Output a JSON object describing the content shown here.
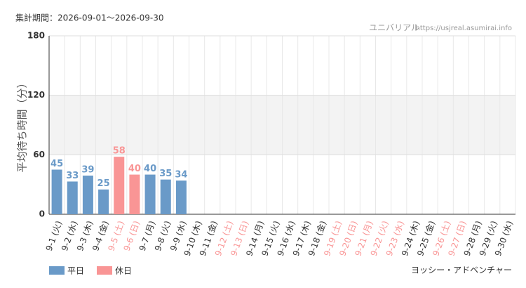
{
  "chart_data": {
    "type": "bar",
    "period": "集計期間：2026-09-01～2026-09-30",
    "site": "ユニバリアル",
    "url": "https://usjreal.asumirai.info",
    "ylabel": "平均待ち時間（分）",
    "attraction": "ヨッシー・アドベンチャー",
    "categories": [
      "9-1 (火)",
      "9-2 (水)",
      "9-3 (木)",
      "9-4 (金)",
      "9-5 (土)",
      "9-6 (日)",
      "9-7 (月)",
      "9-8 (火)",
      "9-9 (水)",
      "9-10 (木)",
      "9-11 (金)",
      "9-12 (土)",
      "9-13 (日)",
      "9-14 (月)",
      "9-15 (火)",
      "9-16 (水)",
      "9-17 (木)",
      "9-18 (金)",
      "9-19 (土)",
      "9-20 (日)",
      "9-21 (月)",
      "9-22 (火)",
      "9-23 (水)",
      "9-24 (木)",
      "9-25 (金)",
      "9-26 (土)",
      "9-27 (日)",
      "9-28 (月)",
      "9-29 (火)",
      "9-30 (水)"
    ],
    "holidays": [
      false,
      false,
      false,
      false,
      true,
      true,
      false,
      false,
      false,
      false,
      false,
      true,
      true,
      false,
      false,
      false,
      false,
      false,
      true,
      true,
      true,
      true,
      true,
      false,
      false,
      true,
      true,
      false,
      false,
      false
    ],
    "series": [
      {
        "name": "平日",
        "color": "#6a9ac8",
        "values": [
          45,
          33,
          39,
          25,
          null,
          null,
          40,
          35,
          34,
          null,
          null,
          null,
          null,
          null,
          null,
          null,
          null,
          null,
          null,
          null,
          null,
          null,
          null,
          null,
          null,
          null,
          null,
          null,
          null,
          null
        ]
      },
      {
        "name": "休日",
        "color": "#f99595",
        "values": [
          null,
          null,
          null,
          null,
          58,
          40,
          null,
          null,
          null,
          null,
          null,
          null,
          null,
          null,
          null,
          null,
          null,
          null,
          null,
          null,
          null,
          null,
          null,
          null,
          null,
          null,
          null,
          null,
          null,
          null
        ]
      }
    ],
    "ylim": [
      0,
      180
    ],
    "yticks": [
      0,
      60,
      120,
      180
    ],
    "grid": true,
    "banded": true
  }
}
